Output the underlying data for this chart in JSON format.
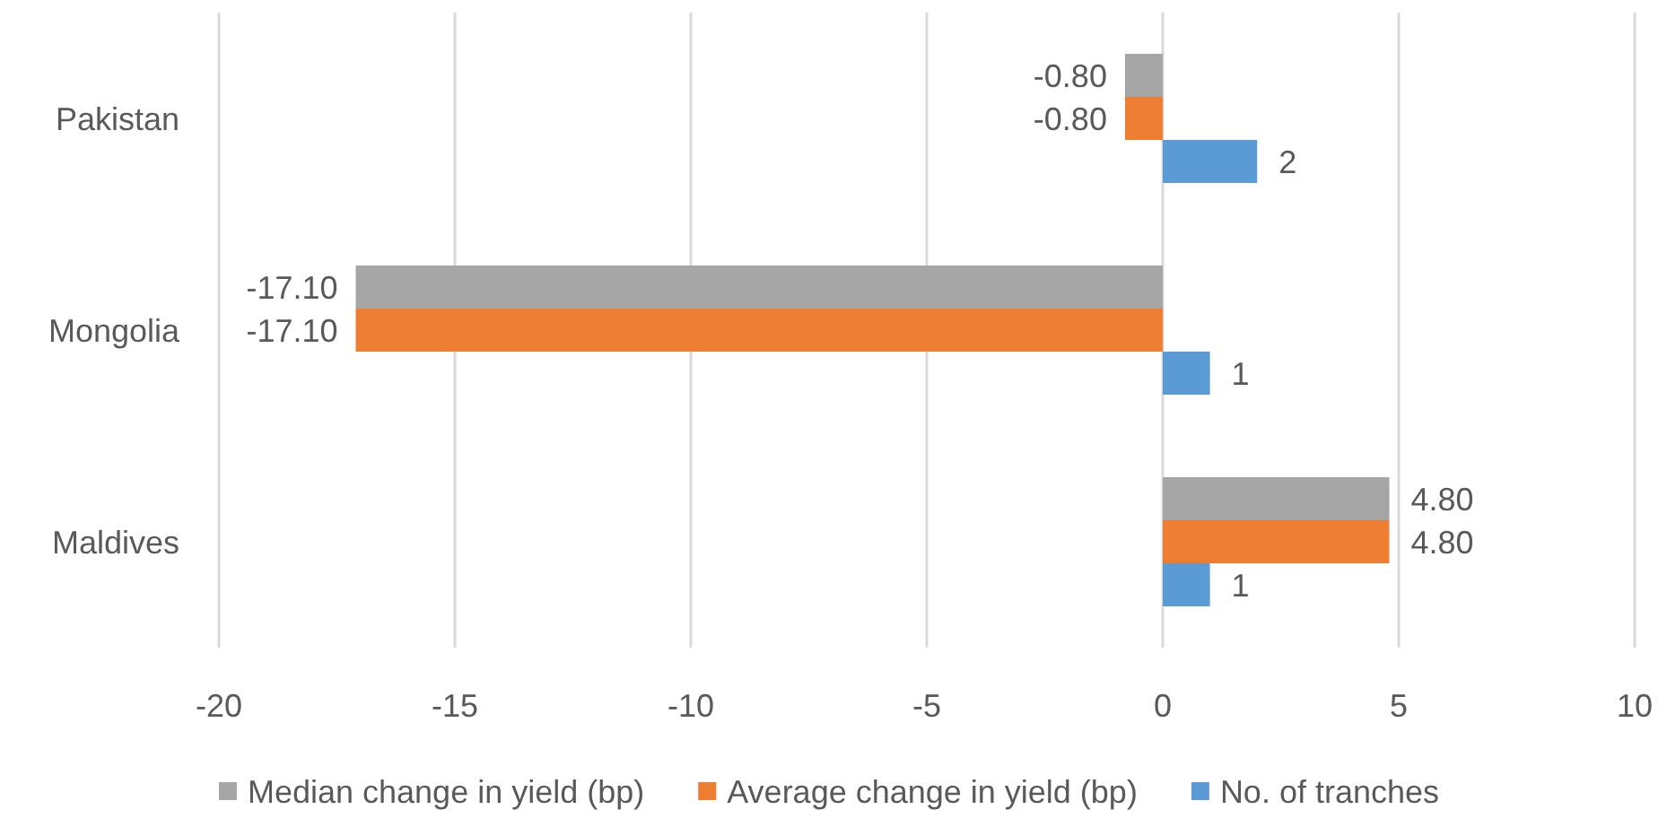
{
  "chart_data": {
    "type": "bar",
    "orientation": "horizontal",
    "categories": [
      "Pakistan",
      "Mongolia",
      "Maldives"
    ],
    "series": [
      {
        "name": "Median change in yield (bp)",
        "color": "#a5a5a5",
        "values": [
          -0.8,
          -17.1,
          4.8
        ],
        "value_labels": [
          "-0.80",
          "-17.10",
          "4.80"
        ]
      },
      {
        "name": "Average change in yield (bp)",
        "color": "#ed7d31",
        "values": [
          -0.8,
          -17.1,
          4.8
        ],
        "value_labels": [
          "-0.80",
          "-17.10",
          "4.80"
        ]
      },
      {
        "name": "No. of tranches",
        "color": "#5b9bd5",
        "values": [
          2,
          1,
          1
        ],
        "value_labels": [
          "2",
          "1",
          "1"
        ]
      }
    ],
    "xlim": [
      -20,
      10
    ],
    "xticks": [
      -20,
      -15,
      -10,
      -5,
      0,
      5,
      10
    ],
    "grid": "x",
    "legend": "bottom"
  }
}
